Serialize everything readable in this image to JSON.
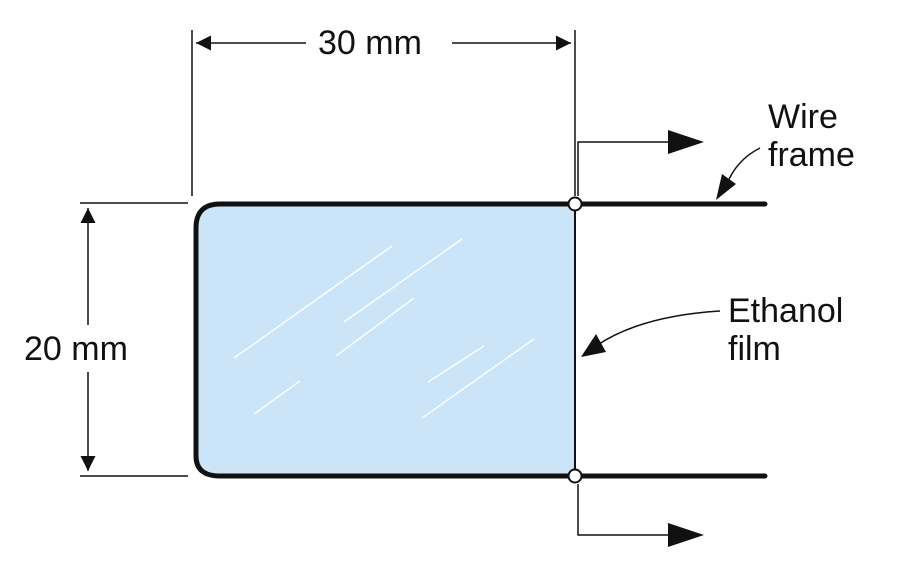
{
  "dimensions": {
    "width_label": "30 mm",
    "height_label": "20 mm"
  },
  "callouts": {
    "wire_frame": {
      "line1": "Wire",
      "line2": "frame"
    },
    "ethanol_film": {
      "line1": "Ethanol",
      "line2": "film"
    }
  },
  "colors": {
    "film_fill": "#cce4f7",
    "stroke": "#111111",
    "highlight": "#ffffff",
    "background": "#ffffff"
  }
}
